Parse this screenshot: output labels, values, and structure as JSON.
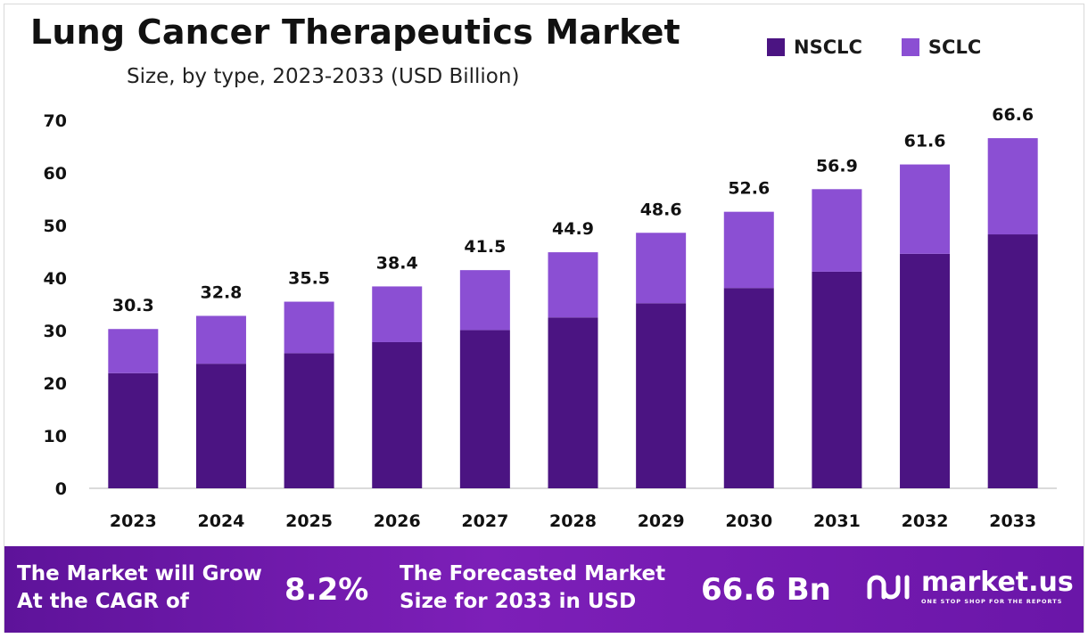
{
  "chart_data": {
    "type": "bar",
    "stacked": true,
    "title": "Lung Cancer Therapeutics Market",
    "subtitle": "Size, by type, 2023-2033 (USD Billion)",
    "categories": [
      "2023",
      "2024",
      "2025",
      "2026",
      "2027",
      "2028",
      "2029",
      "2030",
      "2031",
      "2032",
      "2033"
    ],
    "series": [
      {
        "name": "NSCLC",
        "color": "#4b1482",
        "values": [
          21.9,
          23.7,
          25.7,
          27.8,
          30.1,
          32.5,
          35.2,
          38.1,
          41.2,
          44.6,
          48.3
        ]
      },
      {
        "name": "SCLC",
        "color": "#8b4fd3",
        "values": [
          8.4,
          9.1,
          9.8,
          10.6,
          11.4,
          12.4,
          13.4,
          14.5,
          15.7,
          17.0,
          18.3
        ]
      }
    ],
    "totals": [
      "30.3",
      "32.8",
      "35.5",
      "38.4",
      "41.5",
      "44.9",
      "48.6",
      "52.6",
      "56.9",
      "61.6",
      "66.6"
    ],
    "ylim": [
      0,
      70
    ],
    "yticks": [
      "0",
      "10",
      "20",
      "30",
      "40",
      "50",
      "60",
      "70"
    ],
    "legend_position": "top-right",
    "grid": false
  },
  "banner": {
    "cagr_label_line1": "The Market will Grow",
    "cagr_label_line2": "At the CAGR of",
    "cagr_value": "8.2%",
    "forecast_label_line1": "The Forecasted Market",
    "forecast_label_line2": "Size for 2033 in USD",
    "forecast_value": "66.6 Bn",
    "logo_name": "market.us",
    "logo_tagline": "ONE STOP SHOP FOR THE REPORTS",
    "logo_icon": "market-us-logo-icon"
  }
}
